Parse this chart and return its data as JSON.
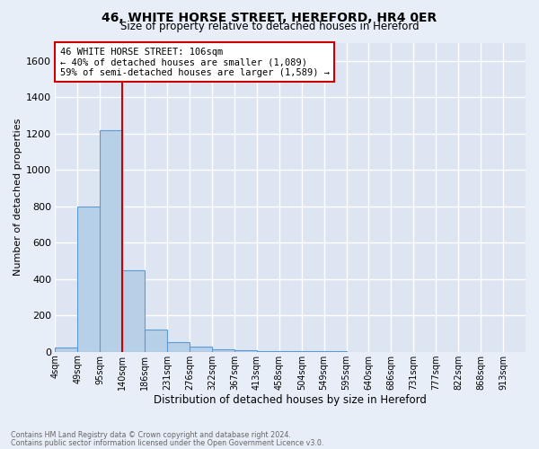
{
  "title": "46, WHITE HORSE STREET, HEREFORD, HR4 0ER",
  "subtitle": "Size of property relative to detached houses in Hereford",
  "xlabel": "Distribution of detached houses by size in Hereford",
  "ylabel": "Number of detached properties",
  "footnote1": "Contains HM Land Registry data © Crown copyright and database right 2024.",
  "footnote2": "Contains public sector information licensed under the Open Government Licence v3.0.",
  "bar_labels": [
    "4sqm",
    "49sqm",
    "95sqm",
    "140sqm",
    "186sqm",
    "231sqm",
    "276sqm",
    "322sqm",
    "367sqm",
    "413sqm",
    "458sqm",
    "504sqm",
    "549sqm",
    "595sqm",
    "640sqm",
    "686sqm",
    "731sqm",
    "777sqm",
    "822sqm",
    "868sqm",
    "913sqm"
  ],
  "bar_values": [
    25,
    800,
    1220,
    450,
    120,
    55,
    30,
    15,
    10,
    5,
    3,
    2,
    1,
    0,
    0,
    0,
    0,
    0,
    0,
    0,
    0
  ],
  "bar_color": "#b8cfe8",
  "bar_edge_color": "#5b9bd5",
  "ylim": [
    0,
    1700
  ],
  "yticks": [
    0,
    200,
    400,
    600,
    800,
    1000,
    1200,
    1400,
    1600
  ],
  "property_line_x": 3.0,
  "annotation_line1": "46 WHITE HORSE STREET: 106sqm",
  "annotation_line2": "← 40% of detached houses are smaller (1,089)",
  "annotation_line3": "59% of semi-detached houses are larger (1,589) →",
  "annotation_box_color": "#cc0000",
  "plot_bg_color": "#dde5f2",
  "fig_bg_color": "#e8eef8"
}
